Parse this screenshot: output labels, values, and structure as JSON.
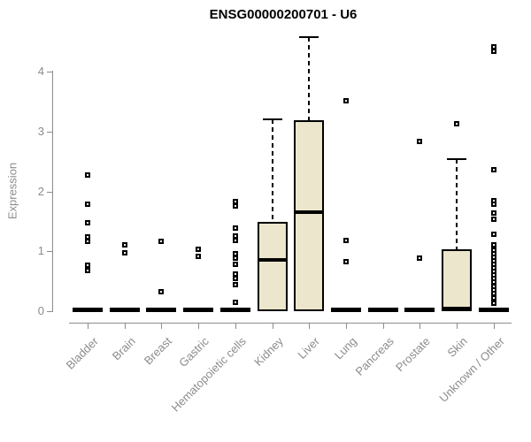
{
  "header": {
    "title": "ENSG00000200701 - U6"
  },
  "chart_data": {
    "type": "boxplot",
    "title": "ENSG00000200701 - U6",
    "xlabel": "",
    "ylabel": "Expression",
    "ylim": [
      0,
      4.65
    ],
    "yticks": [
      0,
      1,
      2,
      3,
      4
    ],
    "grid": false,
    "legend": "none",
    "categories": [
      "Bladder",
      "Brain",
      "Breast",
      "Gastric",
      "Hematopoietic cells",
      "Kidney",
      "Liver",
      "Lung",
      "Pancreas",
      "Prostate",
      "Skin",
      "Unknown / Other"
    ],
    "series": [
      {
        "category": "Bladder",
        "q1": 0,
        "median": 0.02,
        "q3": 0.04,
        "whisker_low": 0,
        "whisker_high": 0.04,
        "outliers": [
          2.27,
          1.79,
          1.48,
          1.24,
          1.17,
          0.77,
          0.68
        ]
      },
      {
        "category": "Brain",
        "q1": 0,
        "median": 0.02,
        "q3": 0.04,
        "whisker_low": 0,
        "whisker_high": 0.04,
        "outliers": [
          1.11,
          0.97
        ]
      },
      {
        "category": "Breast",
        "q1": 0,
        "median": 0.02,
        "q3": 0.04,
        "whisker_low": 0,
        "whisker_high": 0.04,
        "outliers": [
          1.17,
          0.33
        ]
      },
      {
        "category": "Gastric",
        "q1": 0,
        "median": 0.02,
        "q3": 0.04,
        "whisker_low": 0,
        "whisker_high": 0.04,
        "outliers": [
          1.04,
          0.91
        ]
      },
      {
        "category": "Hematopoietic cells",
        "q1": 0,
        "median": 0.02,
        "q3": 0.04,
        "whisker_low": 0,
        "whisker_high": 0.04,
        "outliers": [
          1.83,
          1.76,
          1.39,
          1.26,
          1.18,
          0.96,
          0.88,
          0.78,
          0.62,
          0.55,
          0.45,
          0.15
        ]
      },
      {
        "category": "Kidney",
        "q1": 0.01,
        "median": 0.85,
        "q3": 1.48,
        "whisker_low": 0,
        "whisker_high": 3.2,
        "outliers": []
      },
      {
        "category": "Liver",
        "q1": 0.02,
        "median": 1.65,
        "q3": 3.17,
        "whisker_low": 0,
        "whisker_high": 4.58,
        "outliers": []
      },
      {
        "category": "Lung",
        "q1": 0,
        "median": 0.02,
        "q3": 0.04,
        "whisker_low": 0,
        "whisker_high": 0.04,
        "outliers": [
          3.51,
          1.18,
          0.82
        ]
      },
      {
        "category": "Pancreas",
        "q1": 0,
        "median": 0.02,
        "q3": 0.04,
        "whisker_low": 0,
        "whisker_high": 0.04,
        "outliers": []
      },
      {
        "category": "Prostate",
        "q1": 0,
        "median": 0.02,
        "q3": 0.04,
        "whisker_low": 0,
        "whisker_high": 0.04,
        "outliers": [
          2.83,
          0.88
        ]
      },
      {
        "category": "Skin",
        "q1": 0.01,
        "median": 0.04,
        "q3": 1.02,
        "whisker_low": 0,
        "whisker_high": 2.54,
        "outliers": [
          3.13
        ]
      },
      {
        "category": "Unknown / Other",
        "q1": 0,
        "median": 0.02,
        "q3": 0.04,
        "whisker_low": 0,
        "whisker_high": 0.04,
        "outliers": [
          4.41,
          4.34,
          2.36,
          1.85,
          1.79,
          1.64,
          1.53,
          1.28,
          1.11,
          1.02,
          0.96,
          0.9,
          0.84,
          0.78,
          0.72,
          0.66,
          0.6,
          0.54,
          0.48,
          0.42,
          0.36,
          0.3,
          0.22,
          0.13
        ]
      }
    ],
    "colors": {
      "box_fill": "#ece6cc",
      "box_border": "#000000",
      "median": "#000000",
      "whisker": "#000000",
      "axis": "#8c8c8c",
      "tick_text": "#8c8c8c",
      "title_text": "#000000",
      "background": "#ffffff"
    }
  }
}
